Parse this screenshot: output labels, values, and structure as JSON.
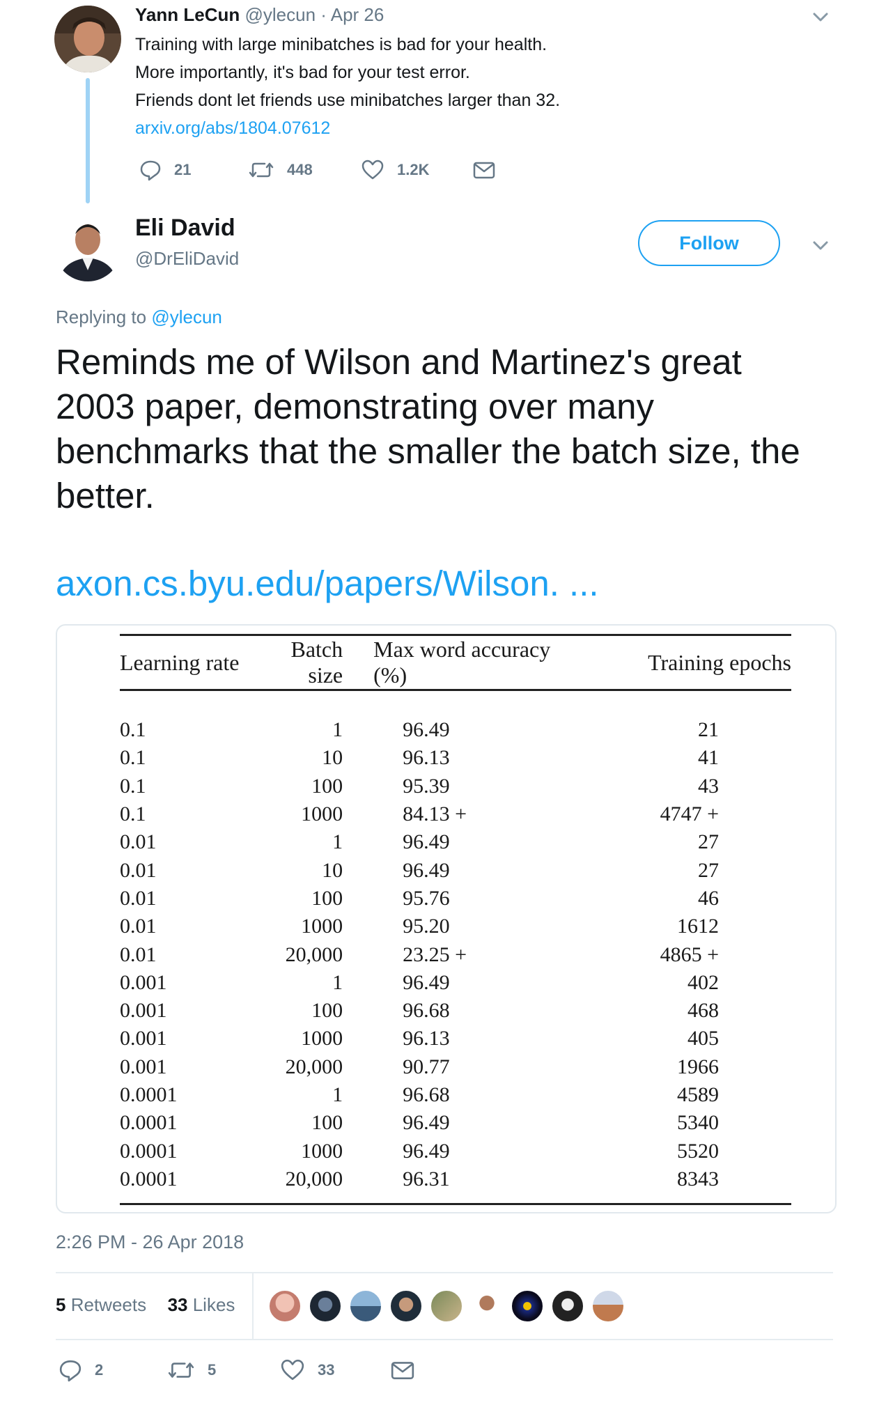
{
  "first_tweet": {
    "author_name": "Yann LeCun",
    "author_handle": "@ylecun",
    "separator": "·",
    "date": "Apr 26",
    "lines": [
      "Training with large minibatches is bad for your health.",
      "More importantly, it's bad for your test error.",
      "Friends dont let friends use minibatches larger than 32."
    ],
    "link": "arxiv.org/abs/1804.07612",
    "replies": "21",
    "retweets": "448",
    "likes": "1.2K"
  },
  "main_tweet": {
    "author_name": "Eli David",
    "author_handle": "@DrEliDavid",
    "follow_label": "Follow",
    "replying_prefix": "Replying to",
    "replying_handle": "@ylecun",
    "text": "Reminds me of Wilson and Martinez's great 2003 paper, demonstrating over many benchmarks that the smaller the batch size, the better.",
    "link": "axon.cs.byu.edu/papers/Wilson. ...",
    "timestamp": "2:26 PM - 26 Apr 2018",
    "retweet_count": "5",
    "retweet_label": "Retweets",
    "like_count": "33",
    "like_label": "Likes",
    "action_replies": "2",
    "action_retweets": "5",
    "action_likes": "33"
  },
  "table": {
    "headers": [
      "Learning rate",
      "Batch size",
      "Max word accuracy (%)",
      "Training epochs"
    ],
    "rows": [
      [
        "0.1",
        "1",
        "96.49",
        "21"
      ],
      [
        "0.1",
        "10",
        "96.13",
        "41"
      ],
      [
        "0.1",
        "100",
        "95.39",
        "43"
      ],
      [
        "0.1",
        "1000",
        "84.13 +",
        "4747 +"
      ],
      [
        "0.01",
        "1",
        "96.49",
        "27"
      ],
      [
        "0.01",
        "10",
        "96.49",
        "27"
      ],
      [
        "0.01",
        "100",
        "95.76",
        "46"
      ],
      [
        "0.01",
        "1000",
        "95.20",
        "1612"
      ],
      [
        "0.01",
        "20,000",
        "23.25 +",
        "4865 +"
      ],
      [
        "0.001",
        "1",
        "96.49",
        "402"
      ],
      [
        "0.001",
        "100",
        "96.68",
        "468"
      ],
      [
        "0.001",
        "1000",
        "96.13",
        "405"
      ],
      [
        "0.001",
        "20,000",
        "90.77",
        "1966"
      ],
      [
        "0.0001",
        "1",
        "96.68",
        "4589"
      ],
      [
        "0.0001",
        "100",
        "96.49",
        "5340"
      ],
      [
        "0.0001",
        "1000",
        "96.49",
        "5520"
      ],
      [
        "0.0001",
        "20,000",
        "96.31",
        "8343"
      ]
    ]
  },
  "colors": {
    "accent": "#1da1f2",
    "muted": "#657786",
    "text": "#14171a",
    "thread_line": "#9fd3f5"
  }
}
